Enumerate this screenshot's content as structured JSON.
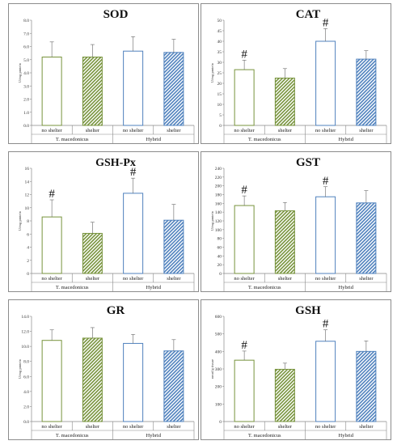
{
  "colors": {
    "green": "#77933c",
    "blue": "#4f81bd",
    "axis": "#888888",
    "grid": "#d9d9d9"
  },
  "chart_data": [
    {
      "type": "bar",
      "title": "SOD",
      "ylabel": "U/mg protein",
      "categories": [
        "no shelter",
        "shelter",
        "no shelter",
        "shelter"
      ],
      "groups": [
        "T. macedonicus",
        "Hybrid"
      ],
      "yticks": [
        "0.0",
        "1.0",
        "2.0",
        "3.0",
        "4.0",
        "5.0",
        "6.0",
        "7.0",
        "8.0"
      ],
      "ylim": [
        0,
        8
      ],
      "values": [
        5.2,
        5.2,
        5.65,
        5.55
      ],
      "errors": [
        1.15,
        0.95,
        1.1,
        1.0
      ],
      "markers": [
        "",
        "",
        "",
        ""
      ]
    },
    {
      "type": "bar",
      "title": "CAT",
      "ylabel": "U/mg protein",
      "categories": [
        "no shelter",
        "shelter",
        "no shelter",
        "shelter"
      ],
      "groups": [
        "T. macedonicus",
        "Hybrid"
      ],
      "yticks": [
        "0",
        "5",
        "10",
        "15",
        "20",
        "25",
        "30",
        "35",
        "40",
        "45",
        "50"
      ],
      "ylim": [
        0,
        50
      ],
      "values": [
        26.5,
        22.5,
        40,
        31.5
      ],
      "errors": [
        4.5,
        4.5,
        6,
        4
      ],
      "markers": [
        "#",
        "",
        "#",
        ""
      ]
    },
    {
      "type": "bar",
      "title": "GSH-Px",
      "ylabel": "U/mg protein",
      "categories": [
        "no shelter",
        "shelter",
        "no shelter",
        "shelter"
      ],
      "groups": [
        "T. macedonicus",
        "Hybrid"
      ],
      "yticks": [
        "0",
        "2",
        "4",
        "6",
        "8",
        "10",
        "12",
        "14",
        "16"
      ],
      "ylim": [
        0,
        16
      ],
      "values": [
        8.6,
        6.1,
        12.2,
        8.1
      ],
      "errors": [
        2.6,
        1.7,
        2.3,
        2.4
      ],
      "markers": [
        "#",
        "",
        "#",
        ""
      ]
    },
    {
      "type": "bar",
      "title": "GST",
      "ylabel": "U/mg protein",
      "categories": [
        "no shelter",
        "shelter",
        "no shelter",
        "shelter"
      ],
      "groups": [
        "T. macedonicus",
        "Hybrid"
      ],
      "yticks": [
        "0",
        "20",
        "40",
        "60",
        "80",
        "100",
        "120",
        "140",
        "160",
        "180",
        "200",
        "220",
        "240"
      ],
      "ylim": [
        0,
        240
      ],
      "values": [
        155,
        143,
        175,
        161
      ],
      "errors": [
        22,
        19,
        23,
        28
      ],
      "markers": [
        "#",
        "",
        "#",
        ""
      ]
    },
    {
      "type": "bar",
      "title": "GR",
      "ylabel": "U/mg protein",
      "categories": [
        "no shelter",
        "shelter",
        "no shelter",
        "shelter"
      ],
      "groups": [
        "T. macedonicus",
        "Hybrid"
      ],
      "yticks": [
        "0.0",
        "2.0",
        "4.0",
        "6.0",
        "8.0",
        "10.0",
        "12.0",
        "14.0"
      ],
      "ylim": [
        0,
        14
      ],
      "values": [
        10.8,
        11.1,
        10.4,
        9.4
      ],
      "errors": [
        1.4,
        1.4,
        1.2,
        1.5
      ],
      "markers": [
        "",
        "",
        "",
        ""
      ]
    },
    {
      "type": "bar",
      "title": "GSH",
      "ylabel": "nmol/g tissue",
      "categories": [
        "no shelter",
        "shelter",
        "no shelter",
        "shelter"
      ],
      "groups": [
        "T. macedonicus",
        "Hybrid"
      ],
      "yticks": [
        "0",
        "100",
        "200",
        "300",
        "400",
        "500",
        "600"
      ],
      "ylim": [
        0,
        600
      ],
      "values": [
        350,
        298,
        458,
        400
      ],
      "errors": [
        52,
        35,
        65,
        60
      ],
      "markers": [
        "#",
        "",
        "#",
        ""
      ]
    }
  ]
}
